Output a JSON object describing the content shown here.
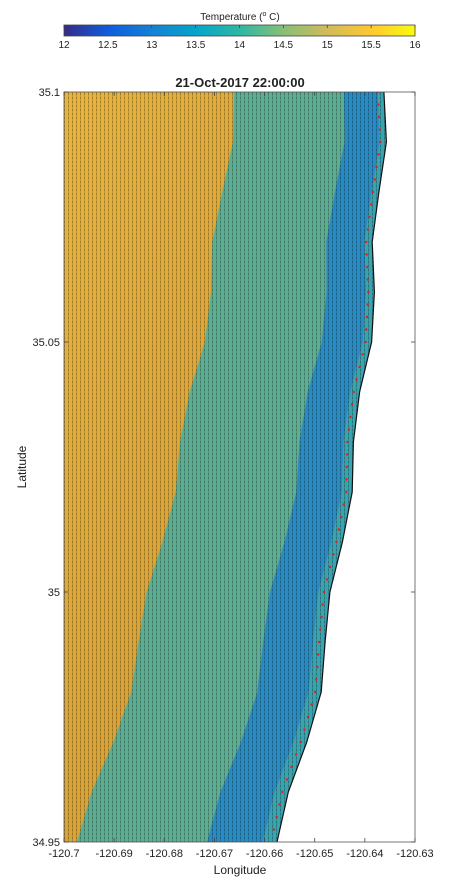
{
  "chart_data": {
    "type": "heatmap",
    "title": "21-Oct-2017 22:00:00",
    "xlabel": "Longitude",
    "ylabel": "Latitude",
    "xlim": [
      -120.7,
      -120.63
    ],
    "ylim": [
      34.95,
      35.1
    ],
    "x_ticks": [
      -120.7,
      -120.69,
      -120.68,
      -120.67,
      -120.66,
      -120.65,
      -120.64,
      -120.63
    ],
    "x_tick_labels": [
      "-120.7",
      "-120.69",
      "-120.68",
      "-120.67",
      "-120.66",
      "-120.65",
      "-120.64",
      "-120.63"
    ],
    "y_ticks": [
      34.95,
      35.0,
      35.05,
      35.1
    ],
    "y_tick_labels": [
      "34.95",
      "35",
      "35.05",
      "35.1"
    ],
    "colorbar": {
      "label": "Temperature ( ° C)",
      "label_parts": [
        "Temperature (",
        "o",
        " C)"
      ],
      "range": [
        12,
        16
      ],
      "ticks": [
        12,
        12.5,
        13,
        13.5,
        14,
        14.5,
        15,
        15.5,
        16
      ],
      "tick_labels": [
        "12",
        "12.5",
        "13",
        "13.5",
        "14",
        "14.5",
        "15",
        "15.5",
        "16"
      ],
      "colormap": "parula",
      "colors": [
        "#352a87",
        "#0f5cdd",
        "#1481d6",
        "#06a4ca",
        "#2eb7a4",
        "#87bf77",
        "#d1bb59",
        "#fec832",
        "#f9fb0e"
      ]
    },
    "field": {
      "variable": "sea surface temperature",
      "offshore_value": 15.4,
      "nearshore_value": 13.0,
      "shoreline_value": 14.2,
      "land_color": "#ffffff",
      "coastline_lon_by_lat": [
        [
          34.95,
          -120.6578
        ],
        [
          34.96,
          -120.6545
        ],
        [
          34.97,
          -120.6515
        ],
        [
          34.98,
          -120.6495
        ],
        [
          34.99,
          -120.6478
        ],
        [
          35.0,
          -120.6462
        ],
        [
          35.01,
          -120.6448
        ],
        [
          35.02,
          -120.6432
        ],
        [
          35.03,
          -120.6418
        ],
        [
          35.04,
          -120.6405
        ],
        [
          35.05,
          -120.6393
        ],
        [
          35.06,
          -120.6385
        ],
        [
          35.07,
          -120.6378
        ],
        [
          35.08,
          -120.637
        ],
        [
          35.09,
          -120.6365
        ],
        [
          35.1,
          -120.6362
        ]
      ]
    },
    "grid": false,
    "vectors_overlay": true,
    "vector_color": "#000000",
    "shoreline_marker_color": "#e0201b"
  }
}
